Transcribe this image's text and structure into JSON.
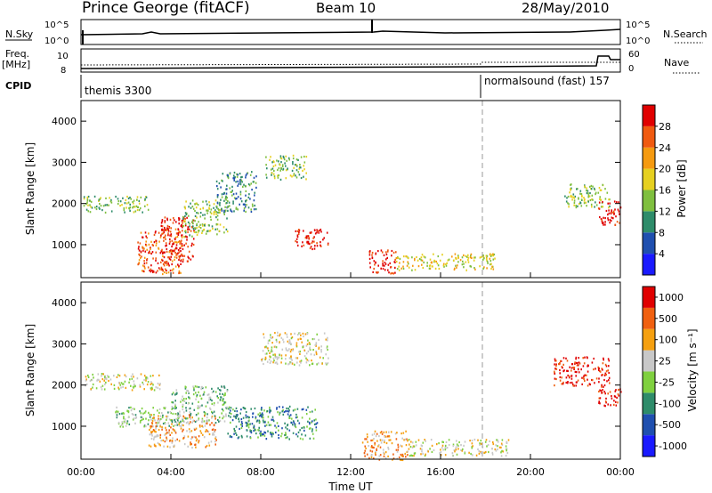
{
  "header": {
    "station": "Prince George (fitACF)",
    "beam": "Beam 10",
    "date": "28/May/2010"
  },
  "sky_panel": {
    "left_label": "N.Sky",
    "right_label": "N.Search",
    "ticks": [
      "10^5",
      "10^0"
    ]
  },
  "freq_panel": {
    "left_label_1": "Freq.",
    "left_label_2": "[MHz]",
    "left_ticks": [
      "10",
      "8"
    ],
    "right_label": "Nave",
    "right_ticks": [
      "60",
      "0"
    ]
  },
  "cpid": {
    "label": "CPID",
    "modes": [
      {
        "name": "themis 3300"
      },
      {
        "name": "normalsound (fast) 157"
      }
    ]
  },
  "chart_data": [
    {
      "type": "heatmap",
      "title": "",
      "xlabel": "Time UT",
      "ylabel": "Slant Range [km]",
      "x_ticks": [
        "00:00",
        "04:00",
        "08:00",
        "12:00",
        "16:00",
        "20:00",
        "00:00"
      ],
      "y_ticks": [
        "1000",
        "2000",
        "3000",
        "4000"
      ],
      "ylim": [
        200,
        4500
      ],
      "colorbar": {
        "label": "Power [dB]",
        "ticks": [
          "4",
          "8",
          "12",
          "16",
          "20",
          "24",
          "28"
        ],
        "colors": [
          "#1a1aff",
          "#1f4faf",
          "#2e8c6a",
          "#7fbf3f",
          "#e6d020",
          "#f59a10",
          "#f05a10",
          "#e00000"
        ]
      },
      "regions": [
        {
          "t0": 0.1,
          "t1": 3.0,
          "r0": 1800,
          "r1": 2200,
          "level": 3
        },
        {
          "t0": 2.5,
          "t1": 4.5,
          "r0": 300,
          "r1": 1400,
          "level": 6
        },
        {
          "t0": 3.5,
          "t1": 5.0,
          "r0": 600,
          "r1": 1700,
          "level": 7
        },
        {
          "t0": 4.5,
          "t1": 6.5,
          "r0": 1200,
          "r1": 2100,
          "level": 3
        },
        {
          "t0": 6.0,
          "t1": 7.8,
          "r0": 1800,
          "r1": 2800,
          "level": 2
        },
        {
          "t0": 8.2,
          "t1": 10.0,
          "r0": 2600,
          "r1": 3200,
          "level": 3
        },
        {
          "t0": 9.5,
          "t1": 11.0,
          "r0": 900,
          "r1": 1400,
          "level": 7
        },
        {
          "t0": 12.8,
          "t1": 14.0,
          "r0": 300,
          "r1": 900,
          "level": 7
        },
        {
          "t0": 14.0,
          "t1": 18.5,
          "r0": 400,
          "r1": 800,
          "level": 4
        },
        {
          "t0": 21.5,
          "t1": 23.5,
          "r0": 1900,
          "r1": 2500,
          "level": 3
        },
        {
          "t0": 23.0,
          "t1": 24.0,
          "r0": 1500,
          "r1": 2100,
          "level": 7
        }
      ]
    },
    {
      "type": "heatmap",
      "title": "",
      "xlabel": "Time UT",
      "ylabel": "Slant Range [km]",
      "x_ticks": [
        "00:00",
        "04:00",
        "08:00",
        "12:00",
        "16:00",
        "20:00",
        "00:00"
      ],
      "y_ticks": [
        "1000",
        "2000",
        "3000",
        "4000"
      ],
      "ylim": [
        200,
        4500
      ],
      "colorbar": {
        "label": "Velocity [m s⁻¹]",
        "ticks": [
          "1000",
          "500",
          "100",
          "25",
          "-25",
          "-100",
          "-500",
          "-1000"
        ],
        "colors": [
          "#1a1aff",
          "#1f4faf",
          "#2e8c6a",
          "#7fd03f",
          "#c8c8c8",
          "#f5a010",
          "#f06010",
          "#e00000"
        ]
      },
      "regions": [
        {
          "t0": 0.1,
          "t1": 3.5,
          "r0": 1900,
          "r1": 2300,
          "level": 4
        },
        {
          "t0": 1.5,
          "t1": 4.5,
          "r0": 1000,
          "r1": 1500,
          "level": 3
        },
        {
          "t0": 3.0,
          "t1": 6.0,
          "r0": 500,
          "r1": 1300,
          "level": 5
        },
        {
          "t0": 4.0,
          "t1": 6.5,
          "r0": 1100,
          "r1": 2000,
          "level": 3
        },
        {
          "t0": 6.5,
          "t1": 10.5,
          "r0": 700,
          "r1": 1500,
          "level": 2
        },
        {
          "t0": 8.0,
          "t1": 11.0,
          "r0": 2500,
          "r1": 3300,
          "level": 4
        },
        {
          "t0": 12.5,
          "t1": 14.5,
          "r0": 200,
          "r1": 900,
          "level": 5
        },
        {
          "t0": 14.5,
          "t1": 19.0,
          "r0": 300,
          "r1": 700,
          "level": 4
        },
        {
          "t0": 21.0,
          "t1": 23.5,
          "r0": 2000,
          "r1": 2700,
          "level": 7
        },
        {
          "t0": 23.0,
          "t1": 24.0,
          "r0": 1500,
          "r1": 2000,
          "level": 7
        }
      ]
    }
  ]
}
